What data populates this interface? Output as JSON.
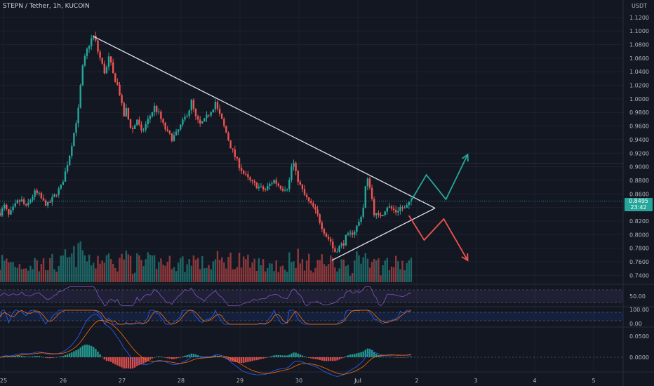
{
  "header": {
    "title": "STEPN / Tether, 1h, KUCOIN",
    "unit": "USDT"
  },
  "price_badge": {
    "price": "0.8495",
    "countdown": "23:42"
  },
  "colors": {
    "background": "#131722",
    "grid": "#1e2230",
    "up": "#26a69a",
    "down": "#ef5350",
    "pattern_line": "#e0e3eb",
    "projection_up": "#26a69a",
    "projection_down": "#ef5350",
    "rsi": "#7e57c2",
    "stoch_k": "#2962ff",
    "stoch_d": "#ff6d00",
    "macd": "#2962ff",
    "signal": "#ff6d00"
  },
  "chart_data": [
    {
      "type": "candlestick",
      "ylim": [
        0.73,
        1.125
      ],
      "price_scale_labels": [
        "1.1200",
        "1.1000",
        "1.0800",
        "1.0600",
        "1.0400",
        "1.0200",
        "1.0000",
        "0.9800",
        "0.9600",
        "0.9400",
        "0.9200",
        "0.9000",
        "0.8800",
        "0.8600",
        "0.8400",
        "0.8200",
        "0.8000",
        "0.7800",
        "0.7600",
        "0.7400"
      ],
      "x_tick_labels": [
        "25",
        "26",
        "27",
        "28",
        "29",
        "30",
        "Jul",
        "2",
        "3",
        "4",
        "5"
      ],
      "close_path": [
        [
          0,
          0.832
        ],
        [
          4,
          0.842
        ],
        [
          8,
          0.828
        ],
        [
          12,
          0.838
        ],
        [
          16,
          0.848
        ],
        [
          20,
          0.85
        ],
        [
          24,
          0.84
        ],
        [
          28,
          0.852
        ],
        [
          32,
          0.862
        ],
        [
          36,
          0.858
        ],
        [
          40,
          0.848
        ],
        [
          44,
          0.844
        ],
        [
          48,
          0.852
        ],
        [
          52,
          0.862
        ],
        [
          56,
          0.87
        ],
        [
          60,
          0.892
        ],
        [
          64,
          0.918
        ],
        [
          68,
          0.95
        ],
        [
          72,
          0.984
        ],
        [
          74,
          1.018
        ],
        [
          76,
          1.046
        ],
        [
          78,
          1.06
        ],
        [
          80,
          1.072
        ],
        [
          82,
          1.08
        ],
        [
          84,
          1.088
        ],
        [
          86,
          1.092
        ],
        [
          88,
          1.084
        ],
        [
          90,
          1.07
        ],
        [
          92,
          1.06
        ],
        [
          94,
          1.05
        ],
        [
          96,
          1.04
        ],
        [
          98,
          1.046
        ],
        [
          100,
          1.06
        ],
        [
          102,
          1.05
        ],
        [
          104,
          1.036
        ],
        [
          106,
          1.028
        ],
        [
          108,
          1.02
        ],
        [
          110,
          1.008
        ],
        [
          112,
          0.99
        ],
        [
          114,
          0.975
        ],
        [
          116,
          0.984
        ],
        [
          118,
          0.97
        ],
        [
          120,
          0.96
        ],
        [
          122,
          0.955
        ],
        [
          124,
          0.962
        ],
        [
          126,
          0.97
        ],
        [
          128,
          0.96
        ],
        [
          130,
          0.95
        ],
        [
          134,
          0.962
        ],
        [
          138,
          0.975
        ],
        [
          142,
          0.988
        ],
        [
          146,
          0.978
        ],
        [
          150,
          0.962
        ],
        [
          154,
          0.95
        ],
        [
          158,
          0.942
        ],
        [
          162,
          0.948
        ],
        [
          166,
          0.96
        ],
        [
          170,
          0.972
        ],
        [
          174,
          0.985
        ],
        [
          176,
          0.996
        ],
        [
          178,
          0.984
        ],
        [
          180,
          0.972
        ],
        [
          184,
          0.962
        ],
        [
          188,
          0.968
        ],
        [
          192,
          0.978
        ],
        [
          196,
          0.988
        ],
        [
          198,
          0.996
        ],
        [
          200,
          0.984
        ],
        [
          204,
          0.968
        ],
        [
          208,
          0.95
        ],
        [
          212,
          0.93
        ],
        [
          216,
          0.915
        ],
        [
          220,
          0.902
        ],
        [
          224,
          0.89
        ],
        [
          228,
          0.882
        ],
        [
          232,
          0.876
        ],
        [
          236,
          0.872
        ],
        [
          240,
          0.868
        ],
        [
          244,
          0.866
        ],
        [
          248,
          0.874
        ],
        [
          252,
          0.88
        ],
        [
          256,
          0.873
        ],
        [
          260,
          0.868
        ],
        [
          264,
          0.87
        ],
        [
          266,
          0.88
        ],
        [
          268,
          0.9
        ],
        [
          270,
          0.905
        ],
        [
          272,
          0.89
        ],
        [
          276,
          0.872
        ],
        [
          280,
          0.858
        ],
        [
          284,
          0.848
        ],
        [
          288,
          0.84
        ],
        [
          292,
          0.828
        ],
        [
          296,
          0.812
        ],
        [
          300,
          0.798
        ],
        [
          304,
          0.79
        ],
        [
          306,
          0.78
        ],
        [
          308,
          0.775
        ],
        [
          312,
          0.782
        ],
        [
          316,
          0.788
        ],
        [
          318,
          0.796
        ],
        [
          322,
          0.8
        ],
        [
          326,
          0.806
        ],
        [
          330,
          0.818
        ],
        [
          334,
          0.84
        ],
        [
          336,
          0.87
        ],
        [
          338,
          0.88
        ],
        [
          340,
          0.872
        ],
        [
          342,
          0.852
        ],
        [
          344,
          0.832
        ],
        [
          348,
          0.826
        ],
        [
          352,
          0.832
        ],
        [
          356,
          0.842
        ],
        [
          360,
          0.838
        ],
        [
          364,
          0.834
        ],
        [
          368,
          0.84
        ],
        [
          372,
          0.838
        ],
        [
          376,
          0.845
        ],
        [
          378,
          0.8495
        ]
      ],
      "pattern": {
        "upper_trendline": [
          [
            86,
            1.092
          ],
          [
            400,
            0.839
          ]
        ],
        "lower_trendline": [
          [
            305,
            0.762
          ],
          [
            400,
            0.839
          ]
        ]
      },
      "projections": [
        {
          "name": "bullish",
          "points": [
            [
              378,
              0.85
            ],
            [
              392,
              0.888
            ],
            [
              410,
              0.852
            ],
            [
              430,
              0.918
            ]
          ]
        },
        {
          "name": "bearish",
          "points": [
            [
              376,
              0.828
            ],
            [
              390,
              0.792
            ],
            [
              408,
              0.823
            ],
            [
              430,
              0.762
            ]
          ]
        }
      ],
      "volume_scale": [
        0,
        100
      ]
    },
    {
      "type": "line",
      "name": "rsi",
      "ylim": [
        0,
        100
      ],
      "y_labels": [
        "50.00"
      ]
    },
    {
      "type": "line",
      "name": "stochastic",
      "ylim": [
        0,
        100
      ],
      "y_labels": [
        "100.00",
        "0.00"
      ]
    },
    {
      "type": "bar",
      "name": "macd",
      "y_labels": [
        "0.0500",
        "0.0000"
      ]
    }
  ]
}
